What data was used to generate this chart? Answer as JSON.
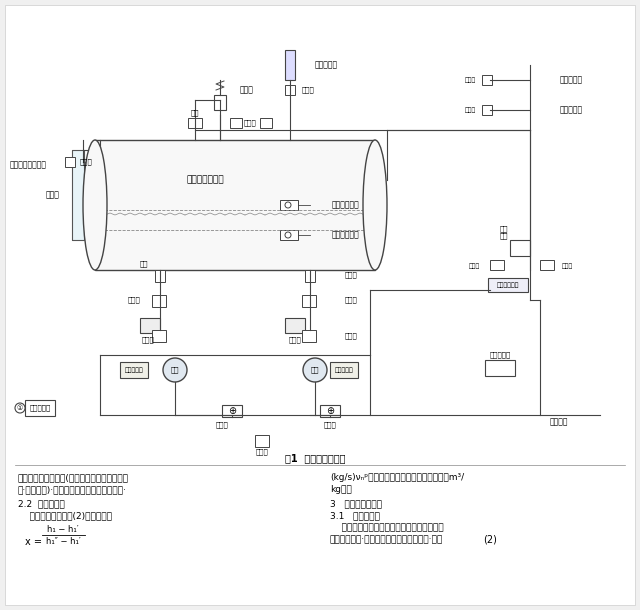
{
  "title_top": "图1  桶泵机组原理图",
  "background_color": "#f0f0f0",
  "page_bg": "#ffffff",
  "diagram_title": "图1  桶泵机组原理图",
  "left_col_text": [
    "杆式压缩机容积效率(活塞式压缩机称为输气系",
    "数·无量纲数)·由各压缩机厂家产品性能决定·",
    "2.2  节流后干度",
    "    节流后干度可由式(2)计算得出："
  ],
  "formula_text": "x =",
  "formula_frac_num": "h₁ − h₁′",
  "formula_frac_den": "h₁′′ − h₁′",
  "formula_num": "(2)",
  "right_col_text": [
    "(kg/s)νₙᵖ为螺杆式压缩机吸气口吸气比容（m³/",
    "kg)。",
    "3   桶泵机组的设计",
    "3.1   液泵的选型",
    "    液泵的选型主要是根据液泵的流量、扬程和",
    "屏蔽电机功率·汽蚀余量等选择合适的液泵·同时"
  ],
  "components": {
    "tank_label": "低压循环贮液桶",
    "float_upper": "浮球液位开关",
    "float_lower": "浮球液位开关",
    "level_gauge": "液位计",
    "safety_valve": "安全阀",
    "level_sensor": "液位传感器",
    "needle_valve1": "针阀",
    "needle_valve2": "针阀",
    "shutoff_valves": "截止阀",
    "check_valve": "止回阀",
    "filter": "过滤器",
    "liquid_pump": "液泵",
    "diff_controller": "差压控制器",
    "internal_safety": "内部安全阀",
    "pressure_valve": "压差导阀",
    "servo_valve": "伺服控制主阀",
    "from_evap": "来自蒸发器",
    "from_collect": "来自贮液器",
    "to_evap": "至蒸发器"
  }
}
